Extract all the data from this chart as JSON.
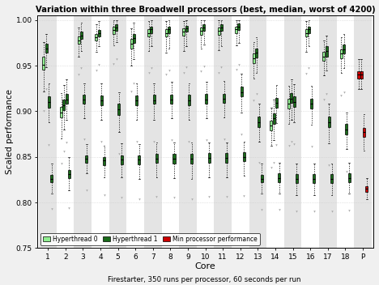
{
  "title": "Variation within three Broadwell processors (best, median, worst of 4200)",
  "xlabel": "Core",
  "xlabel2": "Firestarter, 350 runs per processor, 60 seconds per run",
  "ylabel": "Scaled performance",
  "ylim": [
    0.75,
    1.005
  ],
  "yticks": [
    0.75,
    0.8,
    0.85,
    0.9,
    0.95,
    1.0
  ],
  "cores": [
    1,
    2,
    3,
    4,
    5,
    6,
    7,
    8,
    9,
    10,
    11,
    12,
    13,
    14,
    15,
    16,
    17,
    18
  ],
  "fig_bg_color": "#f0f0f0",
  "plot_bg": "#ffffff",
  "stripe_color": "#e4e4e4",
  "ht0_color": "#90EE90",
  "ht1_color": "#1a6b1a",
  "red_color": "#cc0000",
  "ht0_boxes": [
    {
      "med": 0.951,
      "q1": 0.946,
      "q3": 0.96,
      "whislo": 0.922,
      "whishi": 0.976,
      "fliers_lo": [
        0.9
      ],
      "fliers_hi": []
    },
    {
      "med": 0.899,
      "q1": 0.893,
      "q3": 0.905,
      "whislo": 0.87,
      "whishi": 0.92,
      "fliers_lo": [
        0.843
      ],
      "fliers_hi": []
    },
    {
      "med": 0.978,
      "q1": 0.974,
      "q3": 0.982,
      "whislo": 0.96,
      "whishi": 0.992,
      "fliers_lo": [
        0.94
      ],
      "fliers_hi": []
    },
    {
      "med": 0.981,
      "q1": 0.978,
      "q3": 0.985,
      "whislo": 0.965,
      "whishi": 0.995,
      "fliers_lo": [
        0.945
      ],
      "fliers_hi": []
    },
    {
      "med": 0.989,
      "q1": 0.985,
      "q3": 0.993,
      "whislo": 0.972,
      "whishi": 1.0,
      "fliers_lo": [
        0.952
      ],
      "fliers_hi": []
    },
    {
      "med": 0.974,
      "q1": 0.969,
      "q3": 0.979,
      "whislo": 0.95,
      "whishi": 0.991,
      "fliers_lo": [
        0.922
      ],
      "fliers_hi": []
    },
    {
      "med": 0.986,
      "q1": 0.982,
      "q3": 0.99,
      "whislo": 0.966,
      "whishi": 0.999,
      "fliers_lo": [
        0.942
      ],
      "fliers_hi": []
    },
    {
      "med": 0.986,
      "q1": 0.982,
      "q3": 0.99,
      "whislo": 0.964,
      "whishi": 0.999,
      "fliers_lo": [
        0.94
      ],
      "fliers_hi": []
    },
    {
      "med": 0.987,
      "q1": 0.983,
      "q3": 0.991,
      "whislo": 0.966,
      "whishi": 0.999,
      "fliers_lo": [
        0.942
      ],
      "fliers_hi": []
    },
    {
      "med": 0.988,
      "q1": 0.984,
      "q3": 0.992,
      "whislo": 0.969,
      "whishi": 1.0,
      "fliers_lo": [
        0.944
      ],
      "fliers_hi": []
    },
    {
      "med": 0.988,
      "q1": 0.984,
      "q3": 0.992,
      "whislo": 0.967,
      "whishi": 1.0,
      "fliers_lo": [
        0.942
      ],
      "fliers_hi": []
    },
    {
      "med": 0.99,
      "q1": 0.986,
      "q3": 0.993,
      "whislo": 0.972,
      "whishi": 1.0,
      "fliers_lo": [
        0.946
      ],
      "fliers_hi": []
    },
    {
      "med": 0.958,
      "q1": 0.953,
      "q3": 0.963,
      "whislo": 0.936,
      "whishi": 0.976,
      "fliers_lo": [
        0.912
      ],
      "fliers_hi": []
    },
    {
      "med": 0.884,
      "q1": 0.879,
      "q3": 0.89,
      "whislo": 0.862,
      "whishi": 0.904,
      "fliers_lo": [
        0.838
      ],
      "fliers_hi": []
    },
    {
      "med": 0.908,
      "q1": 0.903,
      "q3": 0.914,
      "whislo": 0.886,
      "whishi": 0.928,
      "fliers_lo": [
        0.862
      ],
      "fliers_hi": []
    },
    {
      "med": 0.986,
      "q1": 0.982,
      "q3": 0.99,
      "whislo": 0.965,
      "whishi": 0.999,
      "fliers_lo": [
        0.941
      ],
      "fliers_hi": []
    },
    {
      "med": 0.96,
      "q1": 0.955,
      "q3": 0.965,
      "whislo": 0.939,
      "whishi": 0.978,
      "fliers_lo": [
        0.913
      ],
      "fliers_hi": []
    },
    {
      "med": 0.963,
      "q1": 0.958,
      "q3": 0.968,
      "whislo": 0.942,
      "whishi": 0.981,
      "fliers_lo": [
        0.917
      ],
      "fliers_hi": []
    }
  ],
  "ht1_boxes": [
    {
      "med": 0.826,
      "q1": 0.822,
      "q3": 0.83,
      "whislo": 0.81,
      "whishi": 0.843,
      "fliers_lo": [
        0.793
      ],
      "fliers_hi": []
    },
    {
      "med": 0.831,
      "q1": 0.827,
      "q3": 0.836,
      "whislo": 0.813,
      "whishi": 0.85,
      "fliers_lo": [
        0.794
      ],
      "fliers_hi": []
    },
    {
      "med": 0.848,
      "q1": 0.844,
      "q3": 0.852,
      "whislo": 0.832,
      "whishi": 0.864,
      "fliers_lo": [
        0.813
      ],
      "fliers_hi": []
    },
    {
      "med": 0.846,
      "q1": 0.841,
      "q3": 0.85,
      "whislo": 0.828,
      "whishi": 0.862,
      "fliers_lo": [
        0.808
      ],
      "fliers_hi": []
    },
    {
      "med": 0.847,
      "q1": 0.842,
      "q3": 0.852,
      "whislo": 0.828,
      "whishi": 0.865,
      "fliers_lo": [
        0.805
      ],
      "fliers_hi": []
    },
    {
      "med": 0.847,
      "q1": 0.842,
      "q3": 0.852,
      "whislo": 0.826,
      "whishi": 0.864,
      "fliers_lo": [
        0.804
      ],
      "fliers_hi": []
    },
    {
      "med": 0.848,
      "q1": 0.844,
      "q3": 0.853,
      "whislo": 0.828,
      "whishi": 0.866,
      "fliers_lo": [
        0.806
      ],
      "fliers_hi": []
    },
    {
      "med": 0.848,
      "q1": 0.843,
      "q3": 0.853,
      "whislo": 0.827,
      "whishi": 0.866,
      "fliers_lo": [
        0.805
      ],
      "fliers_hi": []
    },
    {
      "med": 0.848,
      "q1": 0.843,
      "q3": 0.853,
      "whislo": 0.826,
      "whishi": 0.866,
      "fliers_lo": [
        0.804
      ],
      "fliers_hi": []
    },
    {
      "med": 0.849,
      "q1": 0.844,
      "q3": 0.854,
      "whislo": 0.828,
      "whishi": 0.866,
      "fliers_lo": [
        0.806
      ],
      "fliers_hi": []
    },
    {
      "med": 0.849,
      "q1": 0.844,
      "q3": 0.854,
      "whislo": 0.828,
      "whishi": 0.866,
      "fliers_lo": [
        0.806
      ],
      "fliers_hi": []
    },
    {
      "med": 0.85,
      "q1": 0.845,
      "q3": 0.855,
      "whislo": 0.829,
      "whishi": 0.867,
      "fliers_lo": [
        0.807
      ],
      "fliers_hi": []
    },
    {
      "med": 0.826,
      "q1": 0.822,
      "q3": 0.83,
      "whislo": 0.81,
      "whishi": 0.843,
      "fliers_lo": [
        0.792
      ],
      "fliers_hi": []
    },
    {
      "med": 0.827,
      "q1": 0.822,
      "q3": 0.832,
      "whislo": 0.81,
      "whishi": 0.844,
      "fliers_lo": [
        0.792
      ],
      "fliers_hi": []
    },
    {
      "med": 0.826,
      "q1": 0.821,
      "q3": 0.831,
      "whislo": 0.808,
      "whishi": 0.843,
      "fliers_lo": [
        0.79
      ],
      "fliers_hi": []
    },
    {
      "med": 0.826,
      "q1": 0.821,
      "q3": 0.831,
      "whislo": 0.808,
      "whishi": 0.843,
      "fliers_lo": [
        0.79
      ],
      "fliers_hi": []
    },
    {
      "med": 0.826,
      "q1": 0.821,
      "q3": 0.831,
      "whislo": 0.808,
      "whishi": 0.843,
      "fliers_lo": [
        0.79
      ],
      "fliers_hi": []
    },
    {
      "med": 0.827,
      "q1": 0.822,
      "q3": 0.832,
      "whislo": 0.81,
      "whishi": 0.844,
      "fliers_lo": [
        0.791
      ],
      "fliers_hi": []
    }
  ],
  "ht0_med_boxes": [
    {
      "med": 0.969,
      "q1": 0.964,
      "q3": 0.974,
      "whislo": 0.948,
      "whishi": 0.985,
      "fliers_lo": [
        0.924
      ],
      "fliers_hi": []
    },
    {
      "med": 0.907,
      "q1": 0.901,
      "q3": 0.913,
      "whislo": 0.88,
      "whishi": 0.929,
      "fliers_lo": [
        0.856
      ],
      "fliers_hi": []
    },
    {
      "med": 0.983,
      "q1": 0.979,
      "q3": 0.987,
      "whislo": 0.966,
      "whishi": 0.997,
      "fliers_lo": [
        0.947
      ],
      "fliers_hi": []
    },
    {
      "med": 0.986,
      "q1": 0.982,
      "q3": 0.989,
      "whislo": 0.971,
      "whishi": 0.999,
      "fliers_lo": [
        0.951
      ],
      "fliers_hi": []
    },
    {
      "med": 0.992,
      "q1": 0.988,
      "q3": 0.995,
      "whislo": 0.976,
      "whishi": 1.0,
      "fliers_lo": [
        0.957
      ],
      "fliers_hi": []
    },
    {
      "med": 0.98,
      "q1": 0.975,
      "q3": 0.985,
      "whislo": 0.957,
      "whishi": 0.997,
      "fliers_lo": [
        0.931
      ],
      "fliers_hi": []
    },
    {
      "med": 0.99,
      "q1": 0.986,
      "q3": 0.993,
      "whislo": 0.971,
      "whishi": 1.0,
      "fliers_lo": [
        0.947
      ],
      "fliers_hi": []
    },
    {
      "med": 0.99,
      "q1": 0.986,
      "q3": 0.993,
      "whislo": 0.969,
      "whishi": 1.0,
      "fliers_lo": [
        0.945
      ],
      "fliers_hi": []
    },
    {
      "med": 0.991,
      "q1": 0.987,
      "q3": 0.994,
      "whislo": 0.971,
      "whishi": 1.0,
      "fliers_lo": [
        0.948
      ],
      "fliers_hi": []
    },
    {
      "med": 0.992,
      "q1": 0.988,
      "q3": 0.995,
      "whislo": 0.973,
      "whishi": 1.0,
      "fliers_lo": [
        0.949
      ],
      "fliers_hi": []
    },
    {
      "med": 0.992,
      "q1": 0.988,
      "q3": 0.995,
      "whislo": 0.971,
      "whishi": 1.0,
      "fliers_lo": [
        0.948
      ],
      "fliers_hi": []
    },
    {
      "med": 0.993,
      "q1": 0.989,
      "q3": 0.996,
      "whislo": 0.975,
      "whishi": 1.0,
      "fliers_lo": [
        0.951
      ],
      "fliers_hi": []
    },
    {
      "med": 0.964,
      "q1": 0.959,
      "q3": 0.969,
      "whislo": 0.942,
      "whishi": 0.981,
      "fliers_lo": [
        0.919
      ],
      "fliers_hi": []
    },
    {
      "med": 0.892,
      "q1": 0.886,
      "q3": 0.898,
      "whislo": 0.868,
      "whishi": 0.913,
      "fliers_lo": [
        0.844
      ],
      "fliers_hi": []
    },
    {
      "med": 0.914,
      "q1": 0.909,
      "q3": 0.92,
      "whislo": 0.891,
      "whishi": 0.935,
      "fliers_lo": [
        0.867
      ],
      "fliers_hi": []
    },
    {
      "med": 0.99,
      "q1": 0.986,
      "q3": 0.993,
      "whislo": 0.971,
      "whishi": 1.0,
      "fliers_lo": [
        0.947
      ],
      "fliers_hi": []
    },
    {
      "med": 0.966,
      "q1": 0.96,
      "q3": 0.971,
      "whislo": 0.945,
      "whishi": 0.983,
      "fliers_lo": [
        0.919
      ],
      "fliers_hi": []
    },
    {
      "med": 0.968,
      "q1": 0.963,
      "q3": 0.973,
      "whislo": 0.947,
      "whishi": 0.985,
      "fliers_lo": [
        0.921
      ],
      "fliers_hi": []
    }
  ],
  "ht1_med_boxes": [
    {
      "med": 0.91,
      "q1": 0.904,
      "q3": 0.916,
      "whislo": 0.888,
      "whishi": 0.931,
      "fliers_lo": [
        0.863
      ],
      "fliers_hi": []
    },
    {
      "med": 0.913,
      "q1": 0.908,
      "q3": 0.919,
      "whislo": 0.891,
      "whishi": 0.935,
      "fliers_lo": [
        0.866
      ],
      "fliers_hi": []
    },
    {
      "med": 0.913,
      "q1": 0.908,
      "q3": 0.918,
      "whislo": 0.892,
      "whishi": 0.931,
      "fliers_lo": [
        0.869
      ],
      "fliers_hi": []
    },
    {
      "med": 0.912,
      "q1": 0.907,
      "q3": 0.917,
      "whislo": 0.891,
      "whishi": 0.931,
      "fliers_lo": [
        0.867
      ],
      "fliers_hi": []
    },
    {
      "med": 0.902,
      "q1": 0.896,
      "q3": 0.908,
      "whislo": 0.877,
      "whishi": 0.921,
      "fliers_lo": [
        0.853
      ],
      "fliers_hi": []
    },
    {
      "med": 0.912,
      "q1": 0.907,
      "q3": 0.917,
      "whislo": 0.891,
      "whishi": 0.931,
      "fliers_lo": [
        0.867
      ],
      "fliers_hi": []
    },
    {
      "med": 0.912,
      "q1": 0.908,
      "q3": 0.918,
      "whislo": 0.891,
      "whishi": 0.931,
      "fliers_lo": [
        0.867
      ],
      "fliers_hi": []
    },
    {
      "med": 0.913,
      "q1": 0.908,
      "q3": 0.918,
      "whislo": 0.892,
      "whishi": 0.932,
      "fliers_lo": [
        0.868
      ],
      "fliers_hi": []
    },
    {
      "med": 0.912,
      "q1": 0.907,
      "q3": 0.918,
      "whislo": 0.891,
      "whishi": 0.931,
      "fliers_lo": [
        0.867
      ],
      "fliers_hi": []
    },
    {
      "med": 0.913,
      "q1": 0.908,
      "q3": 0.919,
      "whislo": 0.892,
      "whishi": 0.932,
      "fliers_lo": [
        0.868
      ],
      "fliers_hi": []
    },
    {
      "med": 0.914,
      "q1": 0.909,
      "q3": 0.919,
      "whislo": 0.893,
      "whishi": 0.933,
      "fliers_lo": [
        0.869
      ],
      "fliers_hi": []
    },
    {
      "med": 0.921,
      "q1": 0.916,
      "q3": 0.927,
      "whislo": 0.899,
      "whishi": 0.941,
      "fliers_lo": [
        0.875
      ],
      "fliers_hi": []
    },
    {
      "med": 0.888,
      "q1": 0.883,
      "q3": 0.894,
      "whislo": 0.867,
      "whishi": 0.908,
      "fliers_lo": [
        0.844
      ],
      "fliers_hi": []
    },
    {
      "med": 0.909,
      "q1": 0.904,
      "q3": 0.915,
      "whislo": 0.887,
      "whishi": 0.929,
      "fliers_lo": [
        0.863
      ],
      "fliers_hi": []
    },
    {
      "med": 0.91,
      "q1": 0.905,
      "q3": 0.916,
      "whislo": 0.888,
      "whishi": 0.93,
      "fliers_lo": [
        0.864
      ],
      "fliers_hi": []
    },
    {
      "med": 0.908,
      "q1": 0.903,
      "q3": 0.914,
      "whislo": 0.885,
      "whishi": 0.928,
      "fliers_lo": [
        0.861
      ],
      "fliers_hi": []
    },
    {
      "med": 0.888,
      "q1": 0.883,
      "q3": 0.894,
      "whislo": 0.865,
      "whishi": 0.908,
      "fliers_lo": [
        0.841
      ],
      "fliers_hi": []
    },
    {
      "med": 0.88,
      "q1": 0.875,
      "q3": 0.886,
      "whislo": 0.859,
      "whishi": 0.899,
      "fliers_lo": [
        0.834
      ],
      "fliers_hi": []
    }
  ],
  "red_boxes_top": {
    "med": 0.94,
    "q1": 0.936,
    "q3": 0.944,
    "whislo": 0.924,
    "whishi": 0.957,
    "fliers_lo": [],
    "fliers_hi": []
  },
  "red_boxes_mid": {
    "med": 0.877,
    "q1": 0.872,
    "q3": 0.882,
    "whislo": 0.857,
    "whishi": 0.897,
    "fliers_lo": [],
    "fliers_hi": []
  },
  "red_boxes_bot": {
    "med": 0.815,
    "q1": 0.812,
    "q3": 0.818,
    "whislo": 0.804,
    "whishi": 0.827,
    "fliers_lo": [],
    "fliers_hi": []
  },
  "legend_labels": [
    "Hyperthread 0",
    "Hyperthread 1",
    "Min processor performance"
  ]
}
